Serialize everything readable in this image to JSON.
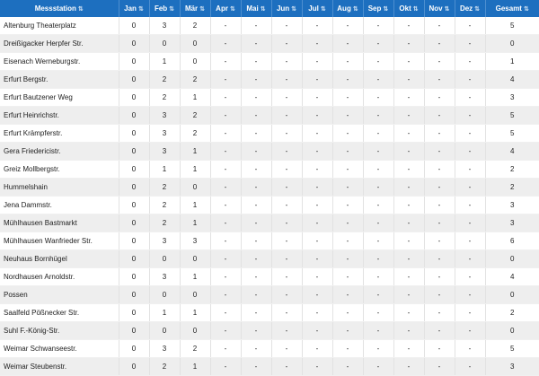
{
  "headers": [
    "Messstation",
    "Jan",
    "Feb",
    "Mär",
    "Apr",
    "Mai",
    "Jun",
    "Jul",
    "Aug",
    "Sep",
    "Okt",
    "Nov",
    "Dez",
    "Gesamt"
  ],
  "sort_icon": "⇅",
  "rows": [
    {
      "station": "Altenburg Theaterplatz",
      "values": [
        "0",
        "3",
        "2",
        "-",
        "-",
        "-",
        "-",
        "-",
        "-",
        "-",
        "-",
        "-",
        "5"
      ]
    },
    {
      "station": "Dreißigacker Herpfer Str.",
      "values": [
        "0",
        "0",
        "0",
        "-",
        "-",
        "-",
        "-",
        "-",
        "-",
        "-",
        "-",
        "-",
        "0"
      ]
    },
    {
      "station": "Eisenach Werneburgstr.",
      "values": [
        "0",
        "1",
        "0",
        "-",
        "-",
        "-",
        "-",
        "-",
        "-",
        "-",
        "-",
        "-",
        "1"
      ]
    },
    {
      "station": "Erfurt Bergstr.",
      "values": [
        "0",
        "2",
        "2",
        "-",
        "-",
        "-",
        "-",
        "-",
        "-",
        "-",
        "-",
        "-",
        "4"
      ]
    },
    {
      "station": "Erfurt Bautzener Weg",
      "values": [
        "0",
        "2",
        "1",
        "-",
        "-",
        "-",
        "-",
        "-",
        "-",
        "-",
        "-",
        "-",
        "3"
      ]
    },
    {
      "station": "Erfurt Heinrichstr.",
      "values": [
        "0",
        "3",
        "2",
        "-",
        "-",
        "-",
        "-",
        "-",
        "-",
        "-",
        "-",
        "-",
        "5"
      ]
    },
    {
      "station": "Erfurt Krämpferstr.",
      "values": [
        "0",
        "3",
        "2",
        "-",
        "-",
        "-",
        "-",
        "-",
        "-",
        "-",
        "-",
        "-",
        "5"
      ]
    },
    {
      "station": "Gera Friedericistr.",
      "values": [
        "0",
        "3",
        "1",
        "-",
        "-",
        "-",
        "-",
        "-",
        "-",
        "-",
        "-",
        "-",
        "4"
      ]
    },
    {
      "station": "Greiz Mollbergstr.",
      "values": [
        "0",
        "1",
        "1",
        "-",
        "-",
        "-",
        "-",
        "-",
        "-",
        "-",
        "-",
        "-",
        "2"
      ]
    },
    {
      "station": "Hummelshain",
      "values": [
        "0",
        "2",
        "0",
        "-",
        "-",
        "-",
        "-",
        "-",
        "-",
        "-",
        "-",
        "-",
        "2"
      ]
    },
    {
      "station": "Jena Dammstr.",
      "values": [
        "0",
        "2",
        "1",
        "-",
        "-",
        "-",
        "-",
        "-",
        "-",
        "-",
        "-",
        "-",
        "3"
      ]
    },
    {
      "station": "Mühlhausen Bastmarkt",
      "values": [
        "0",
        "2",
        "1",
        "-",
        "-",
        "-",
        "-",
        "-",
        "-",
        "-",
        "-",
        "-",
        "3"
      ]
    },
    {
      "station": "Mühlhausen Wanfrieder Str.",
      "values": [
        "0",
        "3",
        "3",
        "-",
        "-",
        "-",
        "-",
        "-",
        "-",
        "-",
        "-",
        "-",
        "6"
      ]
    },
    {
      "station": "Neuhaus Bornhügel",
      "values": [
        "0",
        "0",
        "0",
        "-",
        "-",
        "-",
        "-",
        "-",
        "-",
        "-",
        "-",
        "-",
        "0"
      ]
    },
    {
      "station": "Nordhausen Arnoldstr.",
      "values": [
        "0",
        "3",
        "1",
        "-",
        "-",
        "-",
        "-",
        "-",
        "-",
        "-",
        "-",
        "-",
        "4"
      ]
    },
    {
      "station": "Possen",
      "values": [
        "0",
        "0",
        "0",
        "-",
        "-",
        "-",
        "-",
        "-",
        "-",
        "-",
        "-",
        "-",
        "0"
      ]
    },
    {
      "station": "Saalfeld Pößnecker Str.",
      "values": [
        "0",
        "1",
        "1",
        "-",
        "-",
        "-",
        "-",
        "-",
        "-",
        "-",
        "-",
        "-",
        "2"
      ]
    },
    {
      "station": "Suhl F.-König-Str.",
      "values": [
        "0",
        "0",
        "0",
        "-",
        "-",
        "-",
        "-",
        "-",
        "-",
        "-",
        "-",
        "-",
        "0"
      ]
    },
    {
      "station": "Weimar Schwanseestr.",
      "values": [
        "0",
        "3",
        "2",
        "-",
        "-",
        "-",
        "-",
        "-",
        "-",
        "-",
        "-",
        "-",
        "5"
      ]
    },
    {
      "station": "Weimar Steubenstr.",
      "values": [
        "0",
        "2",
        "1",
        "-",
        "-",
        "-",
        "-",
        "-",
        "-",
        "-",
        "-",
        "-",
        "3"
      ]
    }
  ]
}
